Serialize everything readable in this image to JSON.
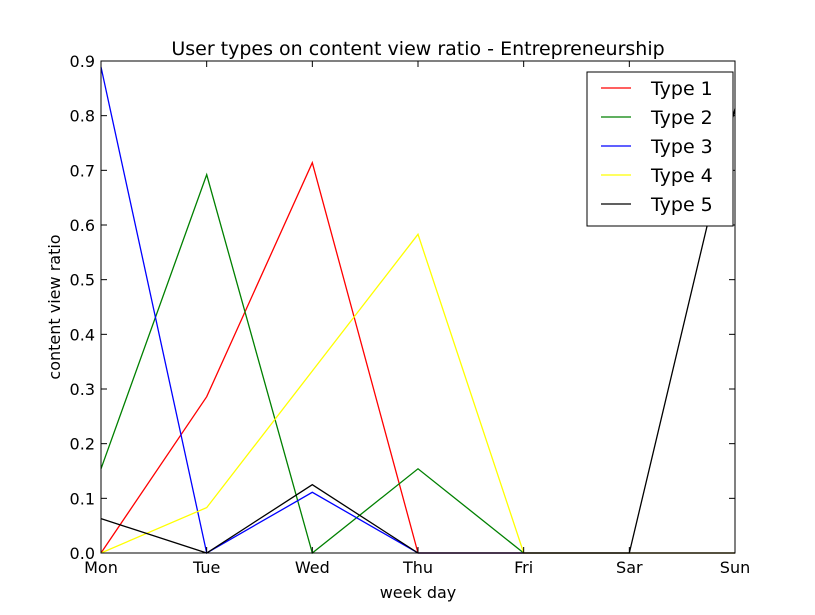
{
  "chart_data": {
    "type": "line",
    "title": "User types on content view ratio - Entrepreneurship",
    "xlabel": "week day",
    "ylabel": "content view ratio",
    "categories": [
      "Mon",
      "Tue",
      "Wed",
      "Thu",
      "Fri",
      "Sar",
      "Sun"
    ],
    "ylim": [
      0,
      0.9
    ],
    "yticks": [
      "0.0",
      "0.1",
      "0.2",
      "0.3",
      "0.4",
      "0.5",
      "0.6",
      "0.7",
      "0.8",
      "0.9"
    ],
    "grid": false,
    "legend": "top-right",
    "series": [
      {
        "name": "Type 1",
        "color": "#ff0000",
        "values": [
          0.0,
          0.286,
          0.714,
          0.0,
          0.0,
          0.0,
          0.0
        ]
      },
      {
        "name": "Type 2",
        "color": "#008000",
        "values": [
          0.154,
          0.692,
          0.0,
          0.154,
          0.0,
          0.0,
          0.0
        ]
      },
      {
        "name": "Type 3",
        "color": "#0000ff",
        "values": [
          0.889,
          0.0,
          0.111,
          0.0,
          0.0,
          0.0,
          0.0
        ]
      },
      {
        "name": "Type 4",
        "color": "#ffff00",
        "values": [
          0.0,
          0.083,
          0.333,
          0.583,
          0.0,
          0.0,
          0.0
        ]
      },
      {
        "name": "Type 5",
        "color": "#000000",
        "values": [
          0.063,
          0.0,
          0.125,
          0.0,
          0.0,
          0.0,
          0.813
        ]
      }
    ]
  }
}
